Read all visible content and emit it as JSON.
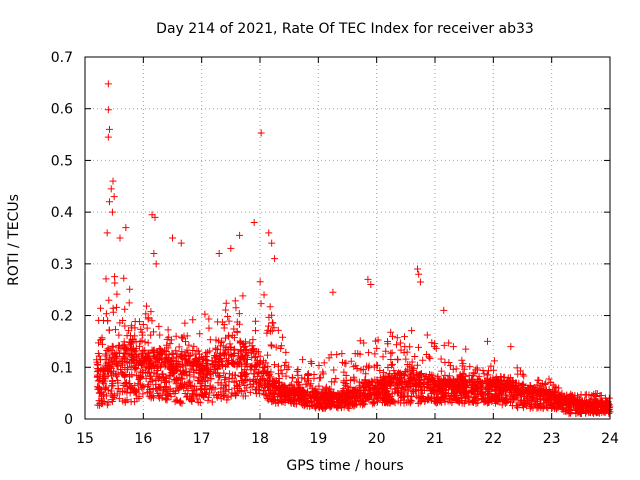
{
  "chart_data": {
    "type": "scatter",
    "title": "Day 214 of 2021, Rate Of TEC Index for receiver ab33",
    "xlabel": "GPS time / hours",
    "ylabel": "ROTI / TECUs",
    "xlim": [
      15,
      24
    ],
    "ylim": [
      0,
      0.7
    ],
    "grid": true,
    "marker": "+",
    "color": "#ff0000",
    "x_ticks": [
      15,
      16,
      17,
      18,
      19,
      20,
      21,
      22,
      23,
      24
    ],
    "x_tick_labels": [
      "15",
      "16",
      "17",
      "18",
      "19",
      "20",
      "21",
      "22",
      "23",
      "24"
    ],
    "y_ticks": [
      0,
      0.1,
      0.2,
      0.3,
      0.4,
      0.5,
      0.6,
      0.7
    ],
    "y_tick_labels": [
      "0",
      "0.1",
      "0.2",
      "0.3",
      "0.4",
      "0.5",
      "0.6",
      "0.7"
    ],
    "envelope": {
      "description": "representative ROTI level (approximate central band / upper band) versus time, used to regenerate the dense scatter",
      "times": [
        15.2,
        15.5,
        15.8,
        16.0,
        16.3,
        16.6,
        17.0,
        17.3,
        17.6,
        18.0,
        18.2,
        18.5,
        19.0,
        19.5,
        20.0,
        20.5,
        21.0,
        21.5,
        22.0,
        22.5,
        23.0,
        23.3,
        23.6,
        24.0
      ],
      "low": [
        0.02,
        0.03,
        0.03,
        0.04,
        0.04,
        0.03,
        0.03,
        0.03,
        0.04,
        0.05,
        0.03,
        0.03,
        0.02,
        0.02,
        0.03,
        0.03,
        0.03,
        0.03,
        0.03,
        0.02,
        0.02,
        0.01,
        0.01,
        0.01
      ],
      "mid": [
        0.08,
        0.1,
        0.11,
        0.1,
        0.1,
        0.09,
        0.09,
        0.1,
        0.11,
        0.1,
        0.06,
        0.05,
        0.04,
        0.04,
        0.06,
        0.07,
        0.06,
        0.06,
        0.06,
        0.05,
        0.04,
        0.03,
        0.025,
        0.025
      ],
      "high": [
        0.24,
        0.3,
        0.26,
        0.24,
        0.2,
        0.18,
        0.2,
        0.22,
        0.24,
        0.3,
        0.22,
        0.14,
        0.12,
        0.14,
        0.18,
        0.18,
        0.16,
        0.14,
        0.12,
        0.1,
        0.08,
        0.05,
        0.05,
        0.05
      ],
      "point_count": 3200,
      "seed": 214
    },
    "notable_points": [
      {
        "x": 15.4,
        "y": 0.648
      },
      {
        "x": 15.4,
        "y": 0.598
      },
      {
        "x": 15.42,
        "y": 0.56
      },
      {
        "x": 15.4,
        "y": 0.545
      },
      {
        "x": 15.48,
        "y": 0.46
      },
      {
        "x": 15.45,
        "y": 0.445
      },
      {
        "x": 15.5,
        "y": 0.43
      },
      {
        "x": 15.42,
        "y": 0.42
      },
      {
        "x": 15.47,
        "y": 0.4
      },
      {
        "x": 15.38,
        "y": 0.36
      },
      {
        "x": 15.6,
        "y": 0.35
      },
      {
        "x": 15.7,
        "y": 0.37
      },
      {
        "x": 16.15,
        "y": 0.395
      },
      {
        "x": 16.2,
        "y": 0.39
      },
      {
        "x": 16.18,
        "y": 0.32
      },
      {
        "x": 16.22,
        "y": 0.3
      },
      {
        "x": 16.5,
        "y": 0.35
      },
      {
        "x": 16.65,
        "y": 0.34
      },
      {
        "x": 17.3,
        "y": 0.32
      },
      {
        "x": 17.5,
        "y": 0.33
      },
      {
        "x": 17.65,
        "y": 0.355
      },
      {
        "x": 17.9,
        "y": 0.38
      },
      {
        "x": 18.02,
        "y": 0.553
      },
      {
        "x": 18.15,
        "y": 0.36
      },
      {
        "x": 18.2,
        "y": 0.34
      },
      {
        "x": 18.25,
        "y": 0.31
      },
      {
        "x": 19.25,
        "y": 0.245
      },
      {
        "x": 19.85,
        "y": 0.27
      },
      {
        "x": 19.9,
        "y": 0.26
      },
      {
        "x": 20.7,
        "y": 0.29
      },
      {
        "x": 20.72,
        "y": 0.28
      },
      {
        "x": 20.75,
        "y": 0.265
      },
      {
        "x": 21.15,
        "y": 0.21
      },
      {
        "x": 21.9,
        "y": 0.15
      },
      {
        "x": 22.3,
        "y": 0.14
      }
    ]
  }
}
